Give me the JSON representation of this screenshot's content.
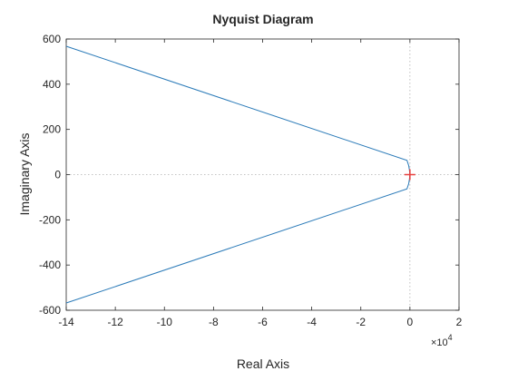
{
  "chart_data": {
    "type": "line",
    "title": "Nyquist Diagram",
    "xlabel": "Real Axis",
    "ylabel": "Imaginary Axis",
    "x_multiplier_label": "×10",
    "x_multiplier_exponent": "4",
    "xlim": [
      -14,
      2
    ],
    "ylim": [
      -600,
      600
    ],
    "x_ticks": [
      -14,
      -12,
      -10,
      -8,
      -6,
      -4,
      -2,
      0,
      2
    ],
    "y_ticks": [
      -600,
      -400,
      -200,
      0,
      200,
      400,
      600
    ],
    "grid": false,
    "zero_lines": "dotted",
    "critical_point": {
      "x": -0.0001,
      "y": 0,
      "marker": "+",
      "color": "#e8403e"
    },
    "line_color": "#2a7ab8",
    "axis_color": "#262626",
    "series": [
      {
        "x": [
          -14,
          -0.12,
          -0.05,
          -0.02,
          -0.01,
          0,
          -0.01,
          -0.02,
          -0.05,
          -0.12,
          -14
        ],
        "y": [
          568,
          63,
          40,
          20,
          8,
          0,
          -8,
          -20,
          -40,
          -63,
          -568
        ]
      }
    ]
  }
}
